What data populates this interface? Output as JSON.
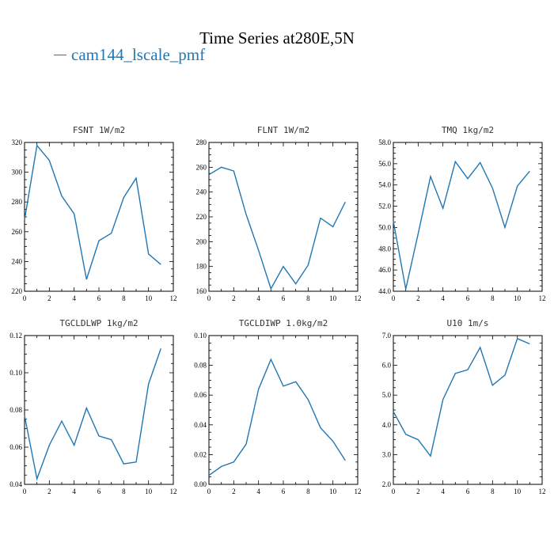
{
  "header": {
    "title": "Time Series at280E,5N",
    "legend_label": "cam144_lscale_pmf"
  },
  "colors": {
    "series": "#1f77b4",
    "axis": "#000000"
  },
  "chart_data": [
    {
      "type": "line",
      "title": "FSNT   1W/m2",
      "xlim": [
        0,
        12
      ],
      "ylim": [
        220,
        320
      ],
      "xticks": [
        0,
        2,
        4,
        6,
        8,
        10,
        12
      ],
      "yticks": [
        "220",
        "240",
        "260",
        "280",
        "300",
        "320"
      ],
      "x": [
        0,
        1,
        2,
        3,
        4,
        5,
        6,
        7,
        8,
        9,
        10,
        11
      ],
      "series": [
        {
          "values": [
            268,
            318,
            308,
            284,
            272,
            228,
            254,
            259,
            283,
            296,
            245,
            238
          ]
        }
      ]
    },
    {
      "type": "line",
      "title": "FLNT   1W/m2",
      "xlim": [
        0,
        12
      ],
      "ylim": [
        160,
        280
      ],
      "xticks": [
        0,
        2,
        4,
        6,
        8,
        10,
        12
      ],
      "yticks": [
        "160",
        "180",
        "200",
        "220",
        "240",
        "260",
        "280"
      ],
      "x": [
        0,
        1,
        2,
        3,
        4,
        5,
        6,
        7,
        8,
        9,
        10,
        11
      ],
      "series": [
        {
          "values": [
            254,
            260,
            257,
            222,
            193,
            162,
            180,
            166,
            181,
            219,
            212,
            232
          ]
        }
      ]
    },
    {
      "type": "line",
      "title": "TMQ   1kg/m2",
      "xlim": [
        0,
        12
      ],
      "ylim": [
        44,
        58
      ],
      "xticks": [
        0,
        2,
        4,
        6,
        8,
        10,
        12
      ],
      "yticks": [
        "44.0",
        "46.0",
        "48.0",
        "50.0",
        "52.0",
        "54.0",
        "56.0",
        "58.0"
      ],
      "x": [
        0,
        1,
        2,
        3,
        4,
        5,
        6,
        7,
        8,
        9,
        10,
        11
      ],
      "series": [
        {
          "values": [
            50.6,
            44.2,
            49.4,
            54.8,
            51.8,
            56.2,
            54.6,
            56.1,
            53.7,
            50.0,
            53.9,
            55.3
          ]
        }
      ]
    },
    {
      "type": "line",
      "title": "TGCLDLWP   1kg/m2",
      "xlim": [
        0,
        12
      ],
      "ylim": [
        0.04,
        0.12
      ],
      "xticks": [
        0,
        2,
        4,
        6,
        8,
        10,
        12
      ],
      "yticks": [
        "0.04",
        "0.06",
        "0.08",
        "0.10",
        "0.12"
      ],
      "x": [
        0,
        1,
        2,
        3,
        4,
        5,
        6,
        7,
        8,
        9,
        10,
        11
      ],
      "series": [
        {
          "values": [
            0.077,
            0.043,
            0.061,
            0.074,
            0.061,
            0.081,
            0.066,
            0.064,
            0.051,
            0.052,
            0.094,
            0.113
          ]
        }
      ]
    },
    {
      "type": "line",
      "title": "TGCLDIWP   1.0kg/m2",
      "xlim": [
        0,
        12
      ],
      "ylim": [
        0.0,
        0.1
      ],
      "xticks": [
        0,
        2,
        4,
        6,
        8,
        10,
        12
      ],
      "yticks": [
        "0.00",
        "0.02",
        "0.04",
        "0.06",
        "0.08",
        "0.10"
      ],
      "x": [
        0,
        1,
        2,
        3,
        4,
        5,
        6,
        7,
        8,
        9,
        10,
        11
      ],
      "series": [
        {
          "values": [
            0.006,
            0.012,
            0.015,
            0.027,
            0.064,
            0.084,
            0.066,
            0.069,
            0.057,
            0.038,
            0.029,
            0.016
          ]
        }
      ]
    },
    {
      "type": "line",
      "title": "U10   1m/s",
      "xlim": [
        0,
        12
      ],
      "ylim": [
        2,
        7
      ],
      "xticks": [
        0,
        2,
        4,
        6,
        8,
        10,
        12
      ],
      "yticks": [
        "2.0",
        "3.0",
        "4.0",
        "5.0",
        "6.0",
        "7.0"
      ],
      "x": [
        0,
        1,
        2,
        3,
        4,
        5,
        6,
        7,
        8,
        9,
        10,
        11
      ],
      "series": [
        {
          "values": [
            4.45,
            3.68,
            3.5,
            2.95,
            4.85,
            5.73,
            5.85,
            6.6,
            5.33,
            5.67,
            6.9,
            6.72
          ]
        }
      ]
    }
  ]
}
